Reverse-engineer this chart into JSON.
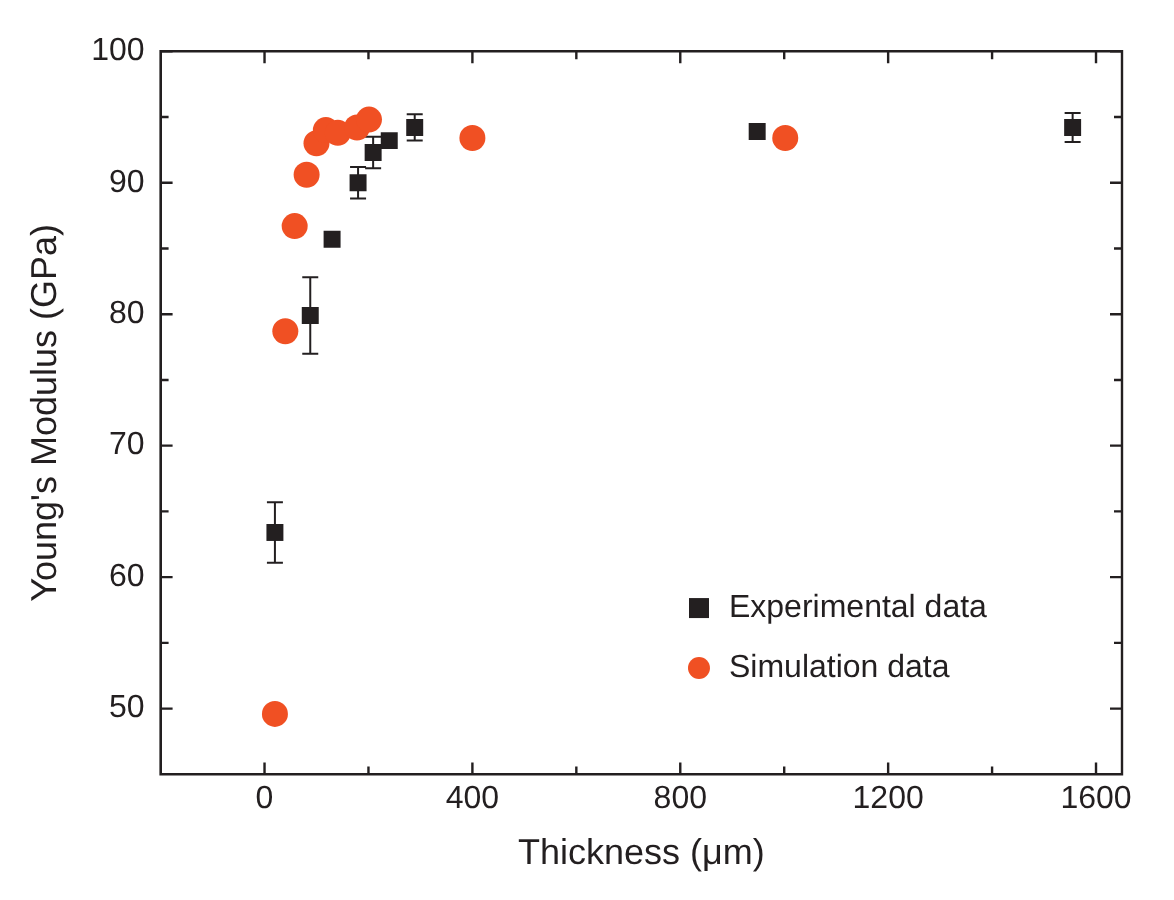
{
  "chart_data": {
    "type": "scatter",
    "xlabel": "Thickness (μm)",
    "ylabel": "Young's Modulus (GPa)",
    "xlim": [
      -200,
      1650
    ],
    "ylim": [
      45,
      100
    ],
    "xticks": [
      0,
      {
        "value": 200,
        "label": null
      },
      400,
      {
        "value": 600,
        "label": null
      },
      800,
      {
        "value": 1000,
        "label": null
      },
      1200,
      {
        "value": 1400,
        "label": null
      },
      1600
    ],
    "yticks": [
      50,
      {
        "value": 55,
        "label": null
      },
      60,
      {
        "value": 65,
        "label": null
      },
      70,
      {
        "value": 75,
        "label": null
      },
      80,
      {
        "value": 85,
        "label": null
      },
      90,
      {
        "value": 95,
        "label": null
      },
      100
    ],
    "grid": false,
    "legend": "right",
    "series": [
      {
        "name": "Experimental data",
        "color": "#231f20",
        "marker": "square",
        "x": [
          20,
          88,
          130,
          180,
          209,
          240,
          289,
          948,
          1555
        ],
        "values": [
          63.4,
          79.9,
          85.7,
          90.0,
          92.3,
          93.2,
          94.2,
          93.9,
          94.2
        ],
        "errors": [
          2.3,
          2.9,
          null,
          1.2,
          1.2,
          null,
          1.0,
          null,
          1.1
        ]
      },
      {
        "name": "Simulation data",
        "color": "#f05023",
        "marker": "circle",
        "x": [
          20,
          40,
          58,
          81,
          100,
          118,
          141,
          178,
          201,
          400,
          1002
        ],
        "values": [
          49.6,
          78.7,
          86.7,
          90.6,
          93.0,
          94.0,
          93.8,
          94.2,
          94.8,
          93.4,
          93.4
        ]
      }
    ]
  }
}
